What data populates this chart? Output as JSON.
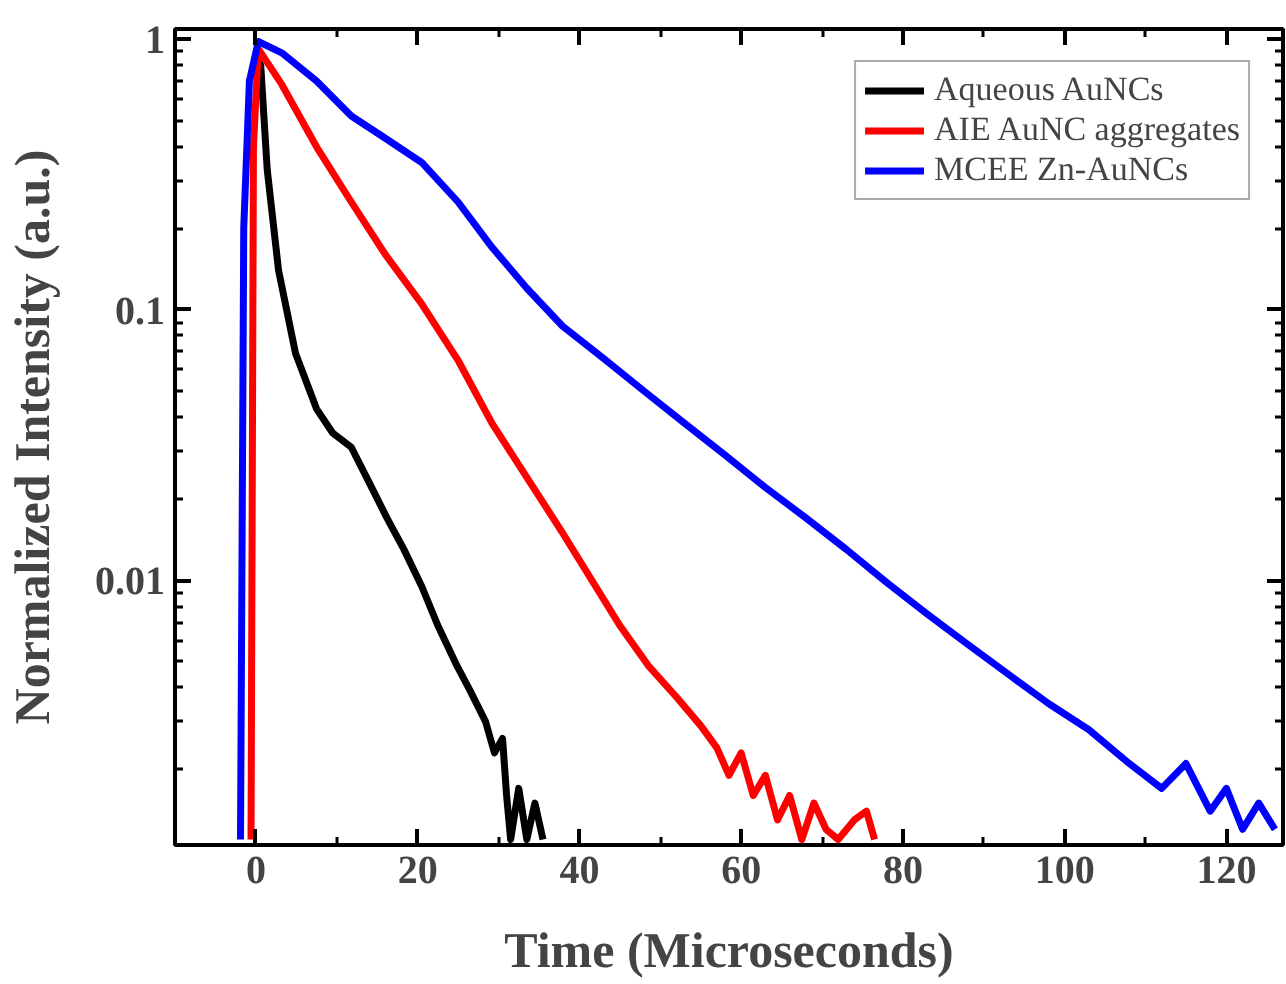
{
  "chart_data": {
    "type": "line",
    "xlabel": "Time (Microseconds)",
    "ylabel": "Normalized Intensity (a.u.)",
    "log": "y",
    "xlim": [
      -10,
      127
    ],
    "ylim": [
      0.00105,
      1.09
    ],
    "xticks": [
      0,
      20,
      40,
      60,
      80,
      100,
      120
    ],
    "yticks": [
      0.01,
      0.1,
      1
    ],
    "legend": "top right",
    "grid": false,
    "marker": "none",
    "line_style": "solid",
    "series": [
      {
        "name": "Aqueous AuNCs",
        "color": "#000000",
        "x": [
          0,
          0.6,
          1.4,
          2.8,
          4.9,
          7.5,
          9.5,
          11.8,
          14,
          16.2,
          18.3,
          20.5,
          22.5,
          24.9,
          26.5,
          28.4,
          29.5,
          30.5,
          31,
          31.5,
          32.5,
          33.5,
          34.5,
          35.5
        ],
        "values": [
          0.85,
          0.8,
          0.33,
          0.14,
          0.069,
          0.043,
          0.035,
          0.031,
          0.023,
          0.017,
          0.013,
          0.0095,
          0.0068,
          0.0048,
          0.0039,
          0.003,
          0.0023,
          0.0026,
          0.0016,
          0.0011,
          0.0017,
          0.0011,
          0.0015,
          0.0011
        ]
      },
      {
        "name": "AIE AuNC aggregates",
        "color": "#ff0000",
        "x": [
          -0.6,
          -0.3,
          0.3,
          3.2,
          7.5,
          11.8,
          16,
          20.5,
          25,
          29.2,
          33.5,
          37.9,
          42,
          45,
          48.6,
          52,
          55,
          57,
          58.5,
          60,
          61.5,
          63,
          64.5,
          66,
          67.5,
          69,
          70.5,
          72,
          74,
          75.5,
          76.5
        ],
        "values": [
          0.0011,
          0.4,
          0.92,
          0.68,
          0.4,
          0.25,
          0.16,
          0.105,
          0.065,
          0.038,
          0.024,
          0.015,
          0.0095,
          0.0068,
          0.0048,
          0.0037,
          0.0029,
          0.0024,
          0.0019,
          0.0023,
          0.0016,
          0.0019,
          0.0013,
          0.0016,
          0.0011,
          0.0015,
          0.0012,
          0.0011,
          0.0013,
          0.0014,
          0.0011
        ]
      },
      {
        "name": "MCEE Zn-AuNCs",
        "color": "#0000ff",
        "x": [
          -1.9,
          -1.5,
          -0.8,
          0.3,
          3.2,
          7.5,
          11.8,
          16,
          20.5,
          25,
          29.2,
          33.5,
          37.9,
          43,
          48,
          53,
          58,
          63,
          68,
          73,
          78,
          83,
          88,
          93,
          98,
          103,
          108,
          112,
          115,
          118,
          120,
          122,
          124,
          126
        ],
        "values": [
          0.0011,
          0.2,
          0.7,
          0.98,
          0.89,
          0.7,
          0.52,
          0.43,
          0.35,
          0.25,
          0.17,
          0.12,
          0.087,
          0.066,
          0.05,
          0.038,
          0.029,
          0.022,
          0.017,
          0.013,
          0.0098,
          0.0075,
          0.0058,
          0.0045,
          0.0035,
          0.0028,
          0.0021,
          0.0017,
          0.0021,
          0.0014,
          0.0017,
          0.0012,
          0.0015,
          0.0012
        ]
      }
    ]
  }
}
